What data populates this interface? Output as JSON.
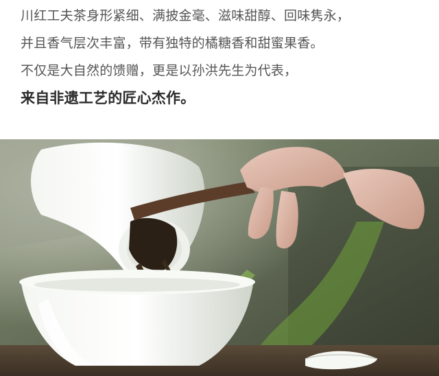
{
  "intro": {
    "lines": [
      "川红工夫茶身形紧细、满披金毫、滋味甜醇、回味隽永，",
      "并且香气层次丰富，带有独特的橘糖香和甜蜜果香。",
      "不仅是大自然的馈赠，更是以孙洪先生为代表，"
    ],
    "emphasis": "来自非遗工艺的匠心杰作。"
  },
  "photo": {
    "subject": "tea-pouring-scene"
  }
}
